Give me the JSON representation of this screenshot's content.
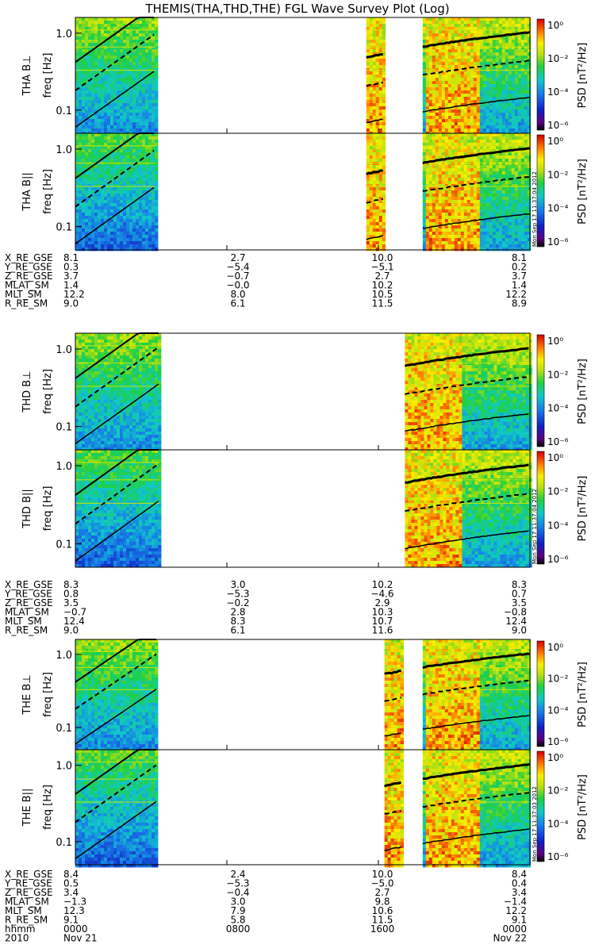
{
  "title": "THEMIS(THA,THD,THE) FGL Wave Survey Plot (Log)",
  "colorbar": {
    "label": "PSD [nT²/Hz]",
    "ticks": [
      "10⁰",
      "10⁻²",
      "10⁻⁴",
      "10⁻⁶"
    ]
  },
  "freq_ticks": [
    "1.0",
    "0.1"
  ],
  "freq_label": "freq [Hz]",
  "timestamp_tha": "Mon Sep 17 11:37:04 2012",
  "timestamp_thd": "Mon Sep 17 11:37:04 2012",
  "timestamp_the": "Mon Sep 17 11:37:03 2012",
  "chart_data": {
    "type": "heatmap",
    "title": "THEMIS(THA,THD,THE) FGL Wave Survey Plot (Log)",
    "x_ticks": [
      "0000",
      "0800",
      "1600",
      "0000"
    ],
    "x_dates": [
      "2010",
      "Nov 21",
      "Nov 22"
    ],
    "y_scale": "log",
    "y_ticks": [
      "1.0",
      "0.1"
    ],
    "ylabel": "freq [Hz]",
    "zlabel": "PSD [nT²/Hz]",
    "panels": [
      {
        "probe": "THA",
        "ylabel": "THA B⊥"
      },
      {
        "probe": "THA",
        "ylabel": "THA B||"
      },
      {
        "probe": "THD",
        "ylabel": "THD B⊥"
      },
      {
        "probe": "THD",
        "ylabel": "THD B||"
      },
      {
        "probe": "THE",
        "ylabel": "THE B⊥"
      },
      {
        "probe": "THE",
        "ylabel": "THE B||"
      }
    ],
    "ephemeris": {
      "tha": {
        "labels": [
          "X_RE_GSE",
          "Y_RE_GSE",
          "Z_RE_GSE",
          "MLAT_SM",
          "MLT_SM",
          "R_RE_SM"
        ],
        "rows": [
          [
            "8.1",
            "2.7",
            "10.0",
            "8.1"
          ],
          [
            "0.3",
            "−5.4",
            "−5.1",
            "0.2"
          ],
          [
            "3.7",
            "−0.7",
            "2.7",
            "3.7"
          ],
          [
            "1.4",
            "−0.0",
            "10.2",
            "1.4"
          ],
          [
            "12.2",
            "8.0",
            "10.5",
            "12.2"
          ],
          [
            "9.0",
            "6.1",
            "11.5",
            "8.9"
          ]
        ]
      },
      "thd": {
        "labels": [
          "X_RE_GSE",
          "Y_RE_GSE",
          "Z_RE_GSE",
          "MLAT_SM",
          "MLT_SM",
          "R_RE_SM"
        ],
        "rows": [
          [
            "8.3",
            "3.0",
            "10.2",
            "8.3"
          ],
          [
            "0.8",
            "−5.3",
            "−4.6",
            "0.7"
          ],
          [
            "3.5",
            "−0.2",
            "2.9",
            "3.5"
          ],
          [
            "−0.7",
            "2.8",
            "10.3",
            "−0.8"
          ],
          [
            "12.4",
            "8.3",
            "10.7",
            "12.4"
          ],
          [
            "9.0",
            "6.1",
            "11.6",
            "9.0"
          ]
        ]
      },
      "the": {
        "labels": [
          "X_RE_GSE",
          "Y_RE_GSE",
          "Z_RE_GSE",
          "MLAT_SM",
          "MLT_SM",
          "R_RE_SM",
          "hhmm",
          "2010"
        ],
        "rows": [
          [
            "8.4",
            "2.4",
            "10.0",
            "8.4"
          ],
          [
            "0.5",
            "−5.3",
            "−5.0",
            "0.4"
          ],
          [
            "3.4",
            "−0.4",
            "2.7",
            "3.4"
          ],
          [
            "−1.3",
            "3.0",
            "9.8",
            "−1.4"
          ],
          [
            "12.3",
            "7.9",
            "10.6",
            "12.2"
          ],
          [
            "9.1",
            "5.8",
            "11.5",
            "9.1"
          ],
          [
            "0000",
            "0800",
            "1600",
            "0000"
          ],
          [
            "Nov 21",
            "",
            "",
            "Nov 22"
          ]
        ]
      }
    }
  }
}
